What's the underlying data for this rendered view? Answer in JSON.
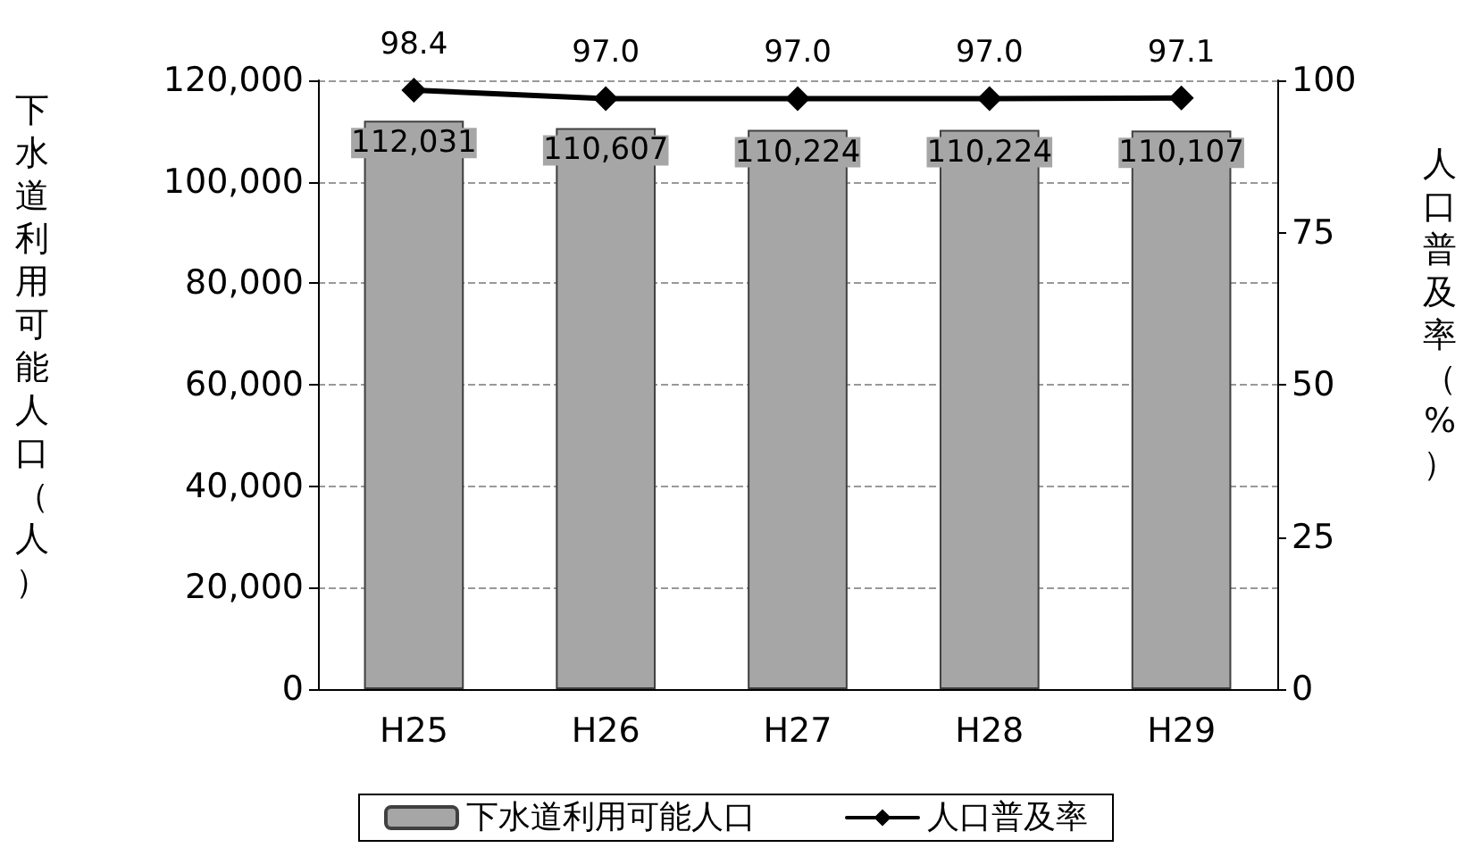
{
  "chart_data": {
    "type": "bar",
    "categories": [
      "H25",
      "H26",
      "H27",
      "H28",
      "H29"
    ],
    "ylabel": "下水道利用可能人口（人）",
    "y2label": "人口普及率（%）",
    "series": [
      {
        "name": "下水道利用可能人口",
        "color": "#a6a6a6",
        "values": [
          112031,
          110607,
          110224,
          110224,
          110107
        ],
        "value_labels": [
          "112,031",
          "110,607",
          "110,224",
          "110,224",
          "110,107"
        ]
      },
      {
        "name": "人口普及率",
        "type": "line",
        "axis": "y2",
        "color": "#000000",
        "values": [
          98.4,
          97.0,
          97.0,
          97.0,
          97.1
        ],
        "value_labels": [
          "98.4",
          "97.0",
          "97.0",
          "97.0",
          "97.1"
        ]
      }
    ],
    "ylim": [
      0,
      120000
    ],
    "yticks": [
      {
        "value": 0,
        "label": "0"
      },
      {
        "value": 20000,
        "label": "20,000"
      },
      {
        "value": 40000,
        "label": "40,000"
      },
      {
        "value": 60000,
        "label": "60,000"
      },
      {
        "value": 80000,
        "label": "80,000"
      },
      {
        "value": 100000,
        "label": "100,000"
      },
      {
        "value": 120000,
        "label": "120,000"
      }
    ],
    "y2lim": [
      0,
      100
    ],
    "y2ticks": [
      0,
      25,
      50,
      75,
      100
    ],
    "grid": "y",
    "legend": "bottom",
    "marker": "diamond",
    "line_style": "solid"
  }
}
